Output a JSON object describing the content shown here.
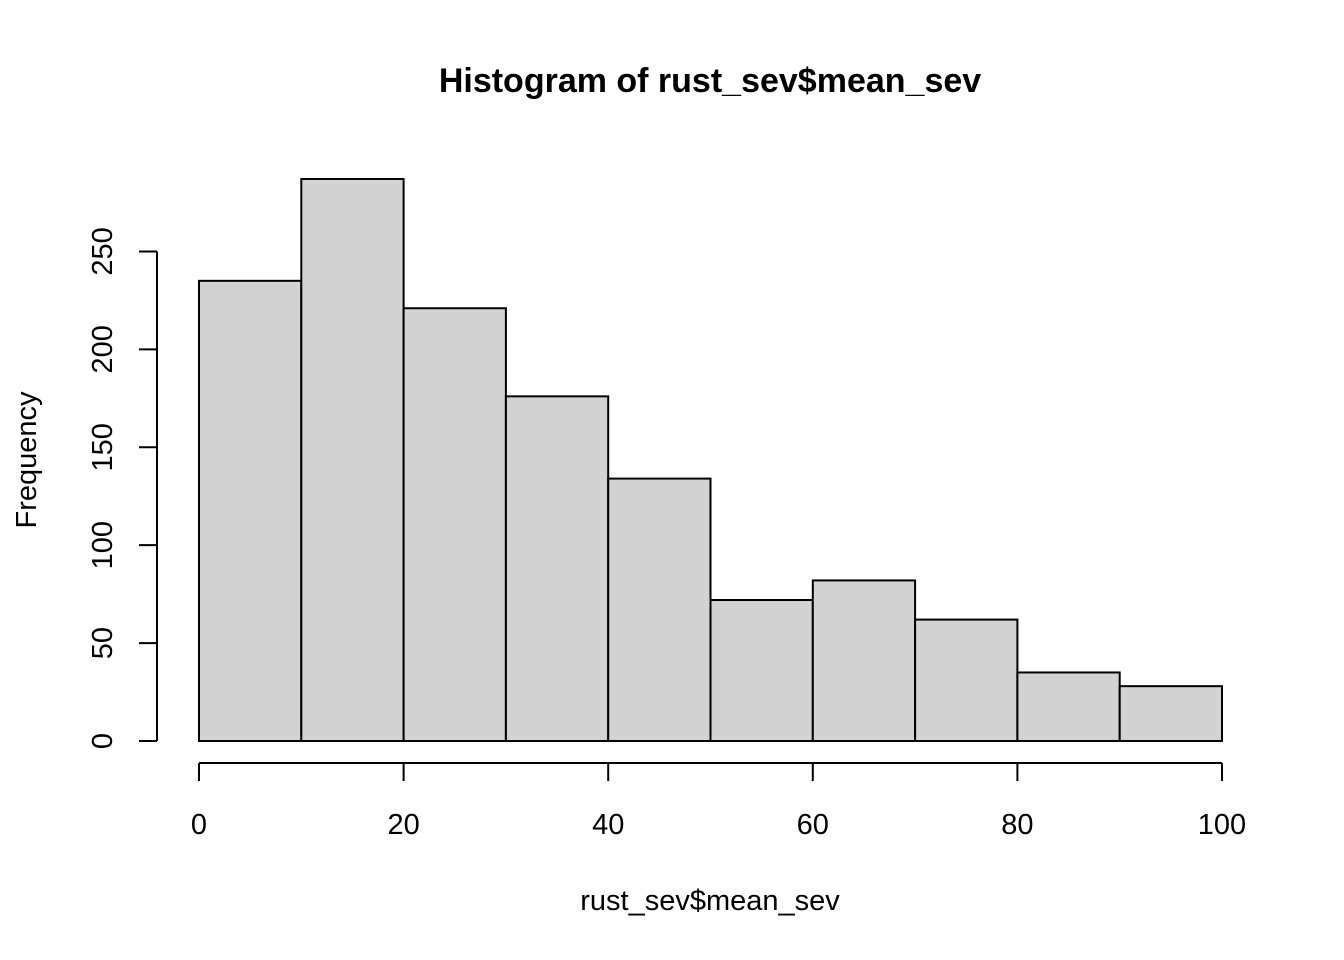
{
  "chart_data": {
    "type": "bar",
    "title": "Histogram of rust_sev$mean_sev",
    "xlabel": "rust_sev$mean_sev",
    "ylabel": "Frequency",
    "bins": [
      {
        "start": 0,
        "end": 10,
        "count": 235
      },
      {
        "start": 10,
        "end": 20,
        "count": 287
      },
      {
        "start": 20,
        "end": 30,
        "count": 221
      },
      {
        "start": 30,
        "end": 40,
        "count": 176
      },
      {
        "start": 40,
        "end": 50,
        "count": 134
      },
      {
        "start": 50,
        "end": 60,
        "count": 72
      },
      {
        "start": 60,
        "end": 70,
        "count": 82
      },
      {
        "start": 70,
        "end": 80,
        "count": 62
      },
      {
        "start": 80,
        "end": 90,
        "count": 35
      },
      {
        "start": 90,
        "end": 100,
        "count": 28
      }
    ],
    "xlim": [
      0,
      100
    ],
    "ylim": [
      0,
      287
    ],
    "xticks": [
      0,
      20,
      40,
      60,
      80,
      100
    ],
    "yticks": [
      0,
      50,
      100,
      150,
      200,
      250
    ],
    "bar_color": "#d3d3d3",
    "edge_color": "#000000",
    "grid": false,
    "legend": false
  }
}
